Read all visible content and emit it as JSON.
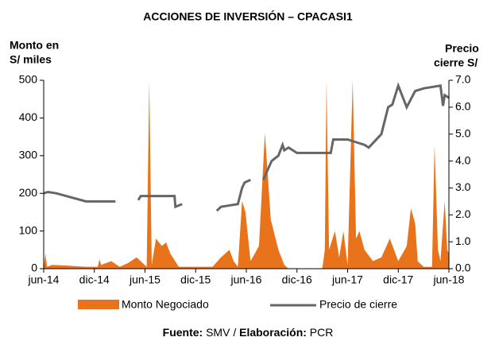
{
  "chart_data": {
    "type": "area-line",
    "title": "ACCIONES DE INVERSIÓN – CPACASI1",
    "y_label": [
      "Monto en",
      "S/ miles"
    ],
    "y2_label": [
      "Precio",
      "cierre S/"
    ],
    "xlim": [
      0,
      48
    ],
    "xticks": [
      {
        "value": 0,
        "label": "jun-14"
      },
      {
        "value": 6,
        "label": "dic-14"
      },
      {
        "value": 12,
        "label": "jun-15"
      },
      {
        "value": 18,
        "label": "dic-15"
      },
      {
        "value": 24,
        "label": "jun-16"
      },
      {
        "value": 30,
        "label": "dic-16"
      },
      {
        "value": 36,
        "label": "jun-17"
      },
      {
        "value": 42,
        "label": "dic-17"
      },
      {
        "value": 48,
        "label": "jun-18"
      }
    ],
    "ylim": [
      0,
      500
    ],
    "yticks": [
      0,
      100,
      200,
      300,
      400,
      500
    ],
    "y2lim": [
      0,
      7
    ],
    "y2ticks": [
      {
        "value": 0,
        "label": "0.0"
      },
      {
        "value": 1,
        "label": "1.0"
      },
      {
        "value": 2,
        "label": "2.0"
      },
      {
        "value": 3,
        "label": "3.0"
      },
      {
        "value": 4,
        "label": "4.0"
      },
      {
        "value": 5,
        "label": "5.0"
      },
      {
        "value": 6,
        "label": "6.0"
      },
      {
        "value": 7,
        "label": "7.0"
      }
    ],
    "series": [
      {
        "name": "Monto Negociado",
        "color": "#e8731a",
        "type": "area",
        "x": [
          0,
          0.2,
          0.4,
          1,
          3,
          5,
          6.4,
          6.6,
          6.8,
          8,
          9,
          10,
          11,
          12.2,
          12.5,
          12.8,
          13.3,
          14,
          14.5,
          15,
          16,
          17,
          19,
          20,
          21,
          22,
          22.5,
          23,
          23.5,
          23.9,
          24.5,
          25.5,
          26.2,
          26.9,
          27.8,
          28.5,
          29,
          33,
          33.3,
          33.5,
          33.8,
          34.5,
          35,
          35.5,
          36,
          36.6,
          37,
          37.4,
          38,
          39,
          40,
          41,
          42,
          43,
          43.5,
          44,
          44.3,
          45,
          46,
          46.3,
          46.7,
          47,
          47.5,
          47.8,
          48
        ],
        "values": [
          0,
          40,
          5,
          10,
          8,
          5,
          5,
          25,
          10,
          20,
          5,
          15,
          30,
          5,
          500,
          10,
          80,
          60,
          70,
          40,
          5,
          5,
          5,
          5,
          30,
          50,
          20,
          5,
          180,
          150,
          20,
          60,
          360,
          130,
          50,
          10,
          0,
          0,
          50,
          500,
          50,
          100,
          30,
          100,
          10,
          500,
          80,
          100,
          50,
          20,
          30,
          80,
          20,
          60,
          160,
          120,
          20,
          5,
          5,
          330,
          50,
          20,
          180,
          50,
          40
        ]
      },
      {
        "name": "Precio de cierre",
        "color": "#666666",
        "type": "line",
        "axis": "y2",
        "x": [
          0,
          0.5,
          1.5,
          5,
          8,
          8.5,
          10.5,
          11.2,
          11.5,
          12.5,
          15.5,
          15.6,
          16.4,
          16.8,
          20.5,
          21,
          22,
          23,
          23.5,
          23.8,
          24.5,
          25,
          26,
          27,
          27.8,
          28.3,
          28.5,
          29,
          30,
          34,
          34.3,
          36,
          37,
          38,
          38.5,
          40,
          40.8,
          41.3,
          42,
          43,
          43.5,
          44,
          45,
          47,
          47.3,
          47.5,
          48
        ],
        "values": [
          2.8,
          2.85,
          2.8,
          2.5,
          2.5,
          2.5,
          null,
          2.55,
          2.7,
          2.7,
          2.7,
          2.3,
          2.4,
          null,
          2.15,
          2.3,
          2.35,
          2.4,
          3.0,
          3.2,
          3.3,
          null,
          3.3,
          4.0,
          4.2,
          4.6,
          4.4,
          4.5,
          4.3,
          4.3,
          4.8,
          4.8,
          4.7,
          4.6,
          4.5,
          5.0,
          6.0,
          6.1,
          6.8,
          6.0,
          6.3,
          6.6,
          6.7,
          6.8,
          6.05,
          6.45,
          6.35
        ]
      }
    ],
    "source": {
      "label1": "Fuente:",
      "value1": "SMV",
      "sep": "/",
      "label2": "Elaboración:",
      "value2": "PCR"
    }
  }
}
